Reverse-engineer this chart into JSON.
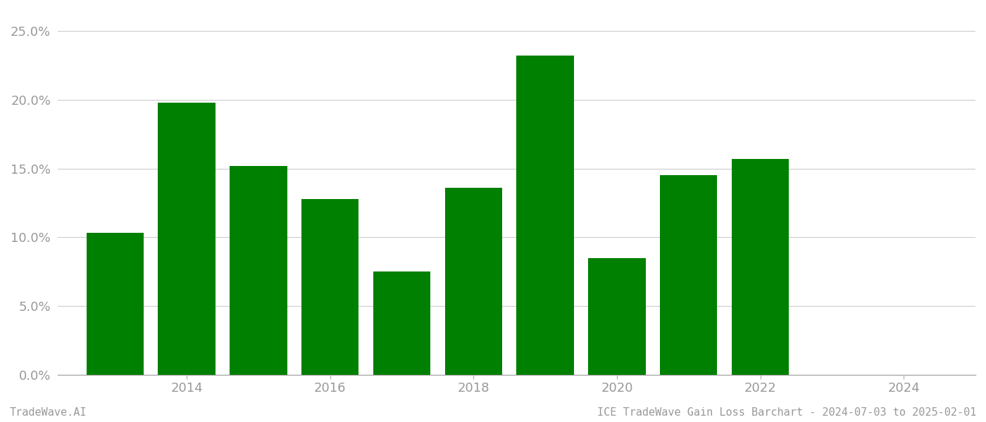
{
  "years": [
    2013,
    2014,
    2015,
    2016,
    2017,
    2018,
    2019,
    2020,
    2021,
    2022,
    2023
  ],
  "values": [
    0.103,
    0.198,
    0.152,
    0.128,
    0.075,
    0.136,
    0.232,
    0.085,
    0.145,
    0.157,
    0.0
  ],
  "bar_color": "#008000",
  "background_color": "#ffffff",
  "grid_color": "#cccccc",
  "ylim": [
    0,
    0.265
  ],
  "yticks": [
    0.0,
    0.05,
    0.1,
    0.15,
    0.2,
    0.25
  ],
  "xlim": [
    2012.2,
    2025.0
  ],
  "xticks": [
    2014,
    2016,
    2018,
    2020,
    2022,
    2024
  ],
  "bar_width": 0.8,
  "footer_left": "TradeWave.AI",
  "footer_right": "ICE TradeWave Gain Loss Barchart - 2024-07-03 to 2025-02-01",
  "footer_fontsize": 11,
  "tick_fontsize": 13,
  "tick_color": "#999999",
  "spine_color": "#aaaaaa"
}
